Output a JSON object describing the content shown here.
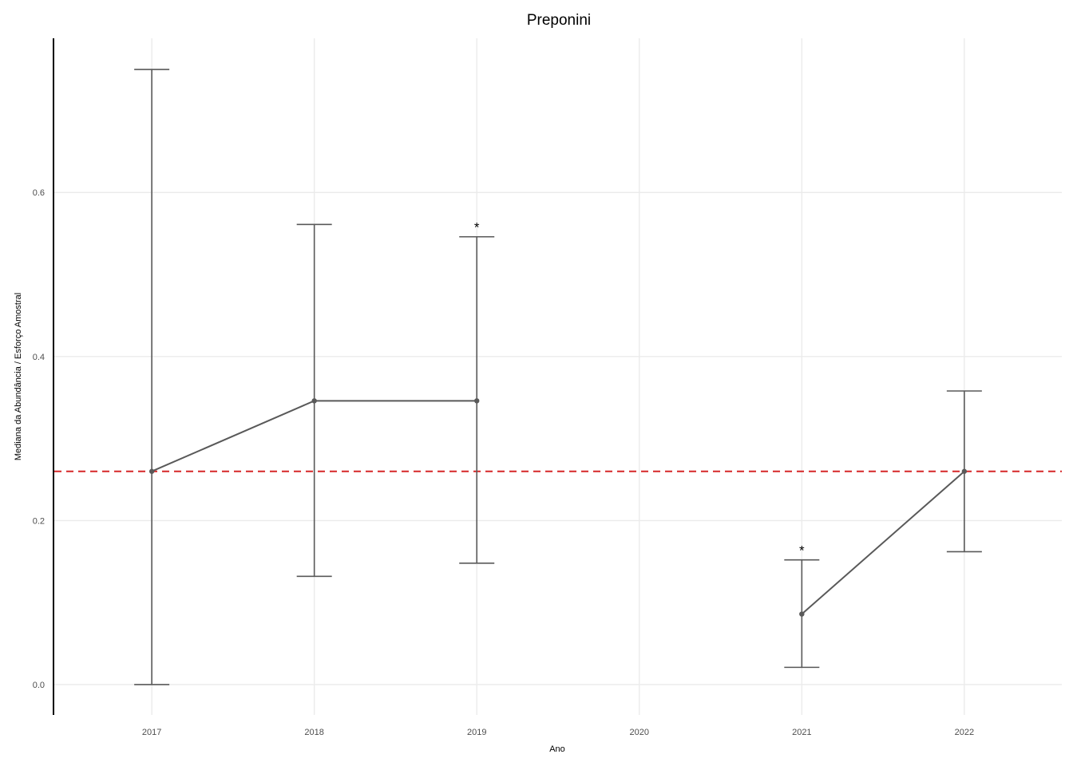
{
  "chart_data": {
    "type": "line",
    "title": "Preponini",
    "xlabel": "Ano",
    "ylabel": "Mediana da Abundância / Esforço Amostral",
    "x_ticks": [
      "2017",
      "2018",
      "2019",
      "2020",
      "2021",
      "2022"
    ],
    "xlim": [
      2016.4,
      2022.6
    ],
    "y_ticks": [
      "0.0",
      "0.2",
      "0.4",
      "0.6"
    ],
    "ylim": [
      -0.037,
      0.788
    ],
    "grid": true,
    "series": [
      {
        "points": [
          {
            "x": 2017,
            "y": 0.26,
            "lower": 0.0,
            "upper": 0.75,
            "marker": ""
          },
          {
            "x": 2018,
            "y": 0.346,
            "lower": 0.132,
            "upper": 0.561,
            "marker": ""
          },
          {
            "x": 2019,
            "y": 0.346,
            "lower": 0.148,
            "upper": 0.546,
            "marker": "*"
          },
          {
            "x": 2021,
            "y": 0.086,
            "lower": 0.021,
            "upper": 0.152,
            "marker": "*"
          },
          {
            "x": 2022,
            "y": 0.26,
            "lower": 0.162,
            "upper": 0.358,
            "marker": ""
          }
        ],
        "color": "#595959"
      }
    ],
    "reference_line": {
      "y": 0.26,
      "color": "#d62728",
      "style": "dashed"
    }
  }
}
